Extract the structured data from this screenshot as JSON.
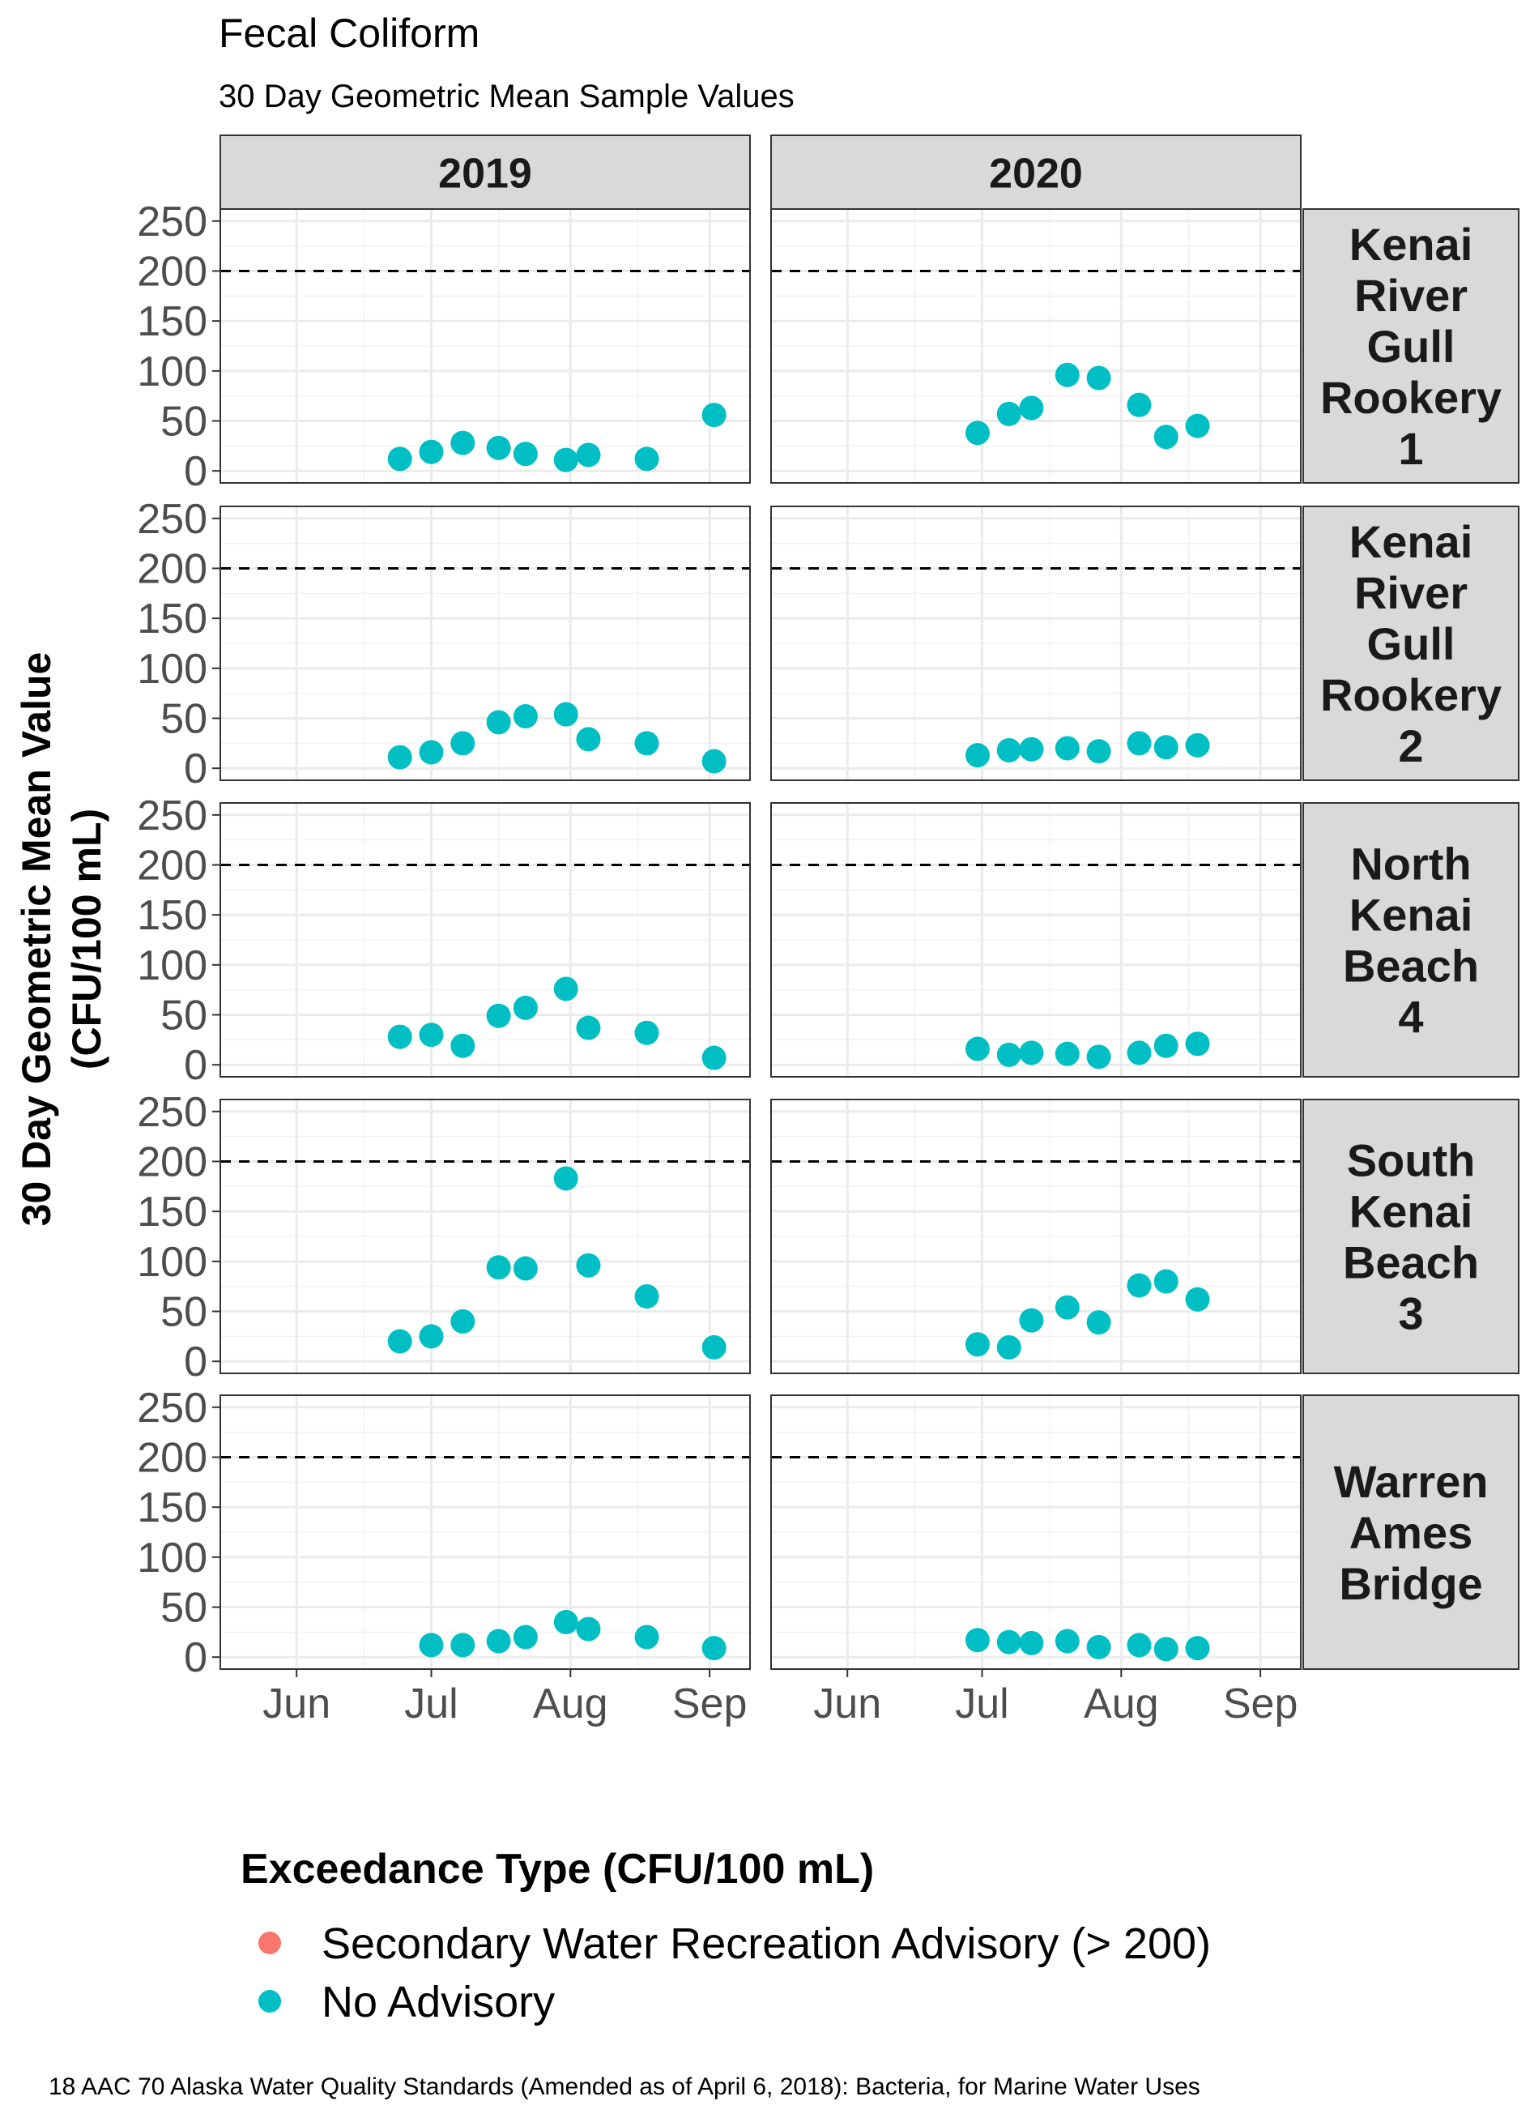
{
  "chart_data": {
    "type": "scatter",
    "title": "Fecal Coliform",
    "subtitle": "30 Day Geometric Mean Sample Values",
    "ylabel": "30 Day Geometric Mean Value (CFU/100 mL)",
    "caption": "18 AAC 70 Alaska Water Quality Standards (Amended as of April 6, 2018): Bacteria, for Marine Water Uses",
    "xlim": [
      "05-15",
      "09-10"
    ],
    "ylim": [
      -12,
      262
    ],
    "yticks": [
      0,
      50,
      100,
      150,
      200,
      250
    ],
    "xticks": [
      {
        "label": "Jun",
        "date": "06-01"
      },
      {
        "label": "Jul",
        "date": "07-01"
      },
      {
        "label": "Aug",
        "date": "08-01"
      },
      {
        "label": "Sep",
        "date": "09-01"
      }
    ],
    "grid": true,
    "threshold": 200,
    "point_color": "#00BFC4",
    "advisory_color": "#F8766D",
    "columns": [
      "2019",
      "2020"
    ],
    "rows": [
      {
        "label": [
          "Kenai",
          "River",
          "Gull",
          "Rookery",
          "1"
        ]
      },
      {
        "label": [
          "Kenai",
          "River",
          "Gull",
          "Rookery",
          "2"
        ]
      },
      {
        "label": [
          "North",
          "Kenai",
          "Beach",
          "4"
        ]
      },
      {
        "label": [
          "South",
          "Kenai",
          "Beach",
          "3"
        ]
      },
      {
        "label": [
          "Warren",
          "Ames",
          "Bridge"
        ]
      }
    ],
    "panels": [
      [
        [
          [
            "06-24",
            12
          ],
          [
            "07-01",
            19
          ],
          [
            "07-08",
            28
          ],
          [
            "07-16",
            23
          ],
          [
            "07-22",
            17
          ],
          [
            "07-31",
            11
          ],
          [
            "08-05",
            16
          ],
          [
            "08-18",
            12
          ],
          [
            "09-02",
            56
          ]
        ],
        [
          [
            "06-30",
            38
          ],
          [
            "07-07",
            57
          ],
          [
            "07-12",
            63
          ],
          [
            "07-20",
            96
          ],
          [
            "07-27",
            93
          ],
          [
            "08-05",
            66
          ],
          [
            "08-11",
            34
          ],
          [
            "08-18",
            45
          ]
        ]
      ],
      [
        [
          [
            "06-24",
            11
          ],
          [
            "07-01",
            16
          ],
          [
            "07-08",
            25
          ],
          [
            "07-16",
            46
          ],
          [
            "07-22",
            52
          ],
          [
            "07-31",
            54
          ],
          [
            "08-05",
            29
          ],
          [
            "08-18",
            25
          ],
          [
            "09-02",
            7
          ]
        ],
        [
          [
            "06-30",
            13
          ],
          [
            "07-07",
            18
          ],
          [
            "07-12",
            19
          ],
          [
            "07-20",
            20
          ],
          [
            "07-27",
            17
          ],
          [
            "08-05",
            25
          ],
          [
            "08-11",
            21
          ],
          [
            "08-18",
            23
          ]
        ]
      ],
      [
        [
          [
            "06-24",
            28
          ],
          [
            "07-01",
            30
          ],
          [
            "07-08",
            19
          ],
          [
            "07-16",
            49
          ],
          [
            "07-22",
            57
          ],
          [
            "07-31",
            76
          ],
          [
            "08-05",
            37
          ],
          [
            "08-18",
            32
          ],
          [
            "09-02",
            7
          ]
        ],
        [
          [
            "06-30",
            16
          ],
          [
            "07-07",
            10
          ],
          [
            "07-12",
            12
          ],
          [
            "07-20",
            11
          ],
          [
            "07-27",
            8
          ],
          [
            "08-05",
            12
          ],
          [
            "08-11",
            19
          ],
          [
            "08-18",
            21
          ]
        ]
      ],
      [
        [
          [
            "06-24",
            20
          ],
          [
            "07-01",
            25
          ],
          [
            "07-08",
            40
          ],
          [
            "07-16",
            94
          ],
          [
            "07-22",
            93
          ],
          [
            "07-31",
            183
          ],
          [
            "08-05",
            96
          ],
          [
            "08-18",
            65
          ],
          [
            "09-02",
            14
          ]
        ],
        [
          [
            "06-30",
            17
          ],
          [
            "07-07",
            14
          ],
          [
            "07-12",
            41
          ],
          [
            "07-20",
            54
          ],
          [
            "07-27",
            39
          ],
          [
            "08-05",
            76
          ],
          [
            "08-11",
            80
          ],
          [
            "08-18",
            62
          ]
        ]
      ],
      [
        [
          [
            "07-01",
            12
          ],
          [
            "07-08",
            12
          ],
          [
            "07-16",
            16
          ],
          [
            "07-22",
            20
          ],
          [
            "07-31",
            35
          ],
          [
            "08-05",
            28
          ],
          [
            "08-18",
            20
          ],
          [
            "09-02",
            9
          ]
        ],
        [
          [
            "06-30",
            17
          ],
          [
            "07-07",
            15
          ],
          [
            "07-12",
            14
          ],
          [
            "07-20",
            16
          ],
          [
            "07-27",
            10
          ],
          [
            "08-05",
            12
          ],
          [
            "08-11",
            8
          ],
          [
            "08-18",
            9
          ]
        ]
      ]
    ],
    "legend": {
      "title": "Exceedance Type (CFU/100 mL)",
      "items": [
        {
          "label": "Secondary Water Recreation Advisory (> 200)",
          "color": "#F8766D"
        },
        {
          "label": "No Advisory",
          "color": "#00BFC4"
        }
      ]
    }
  }
}
